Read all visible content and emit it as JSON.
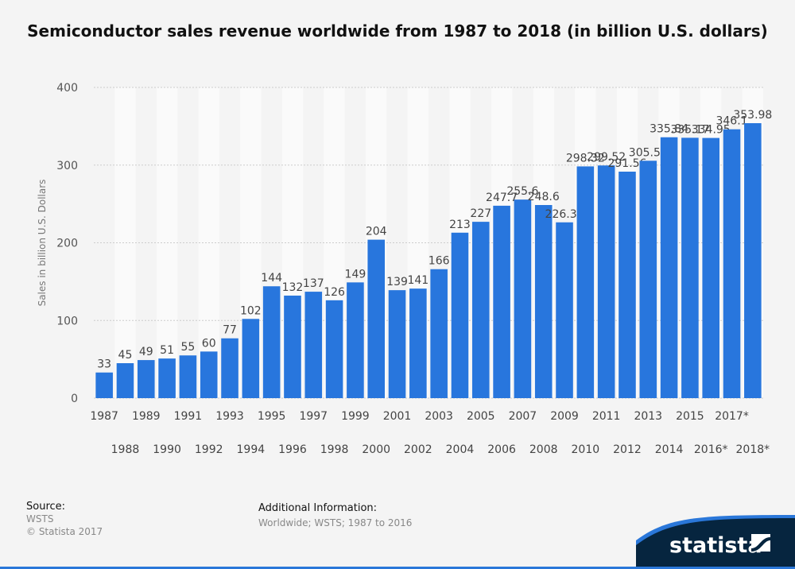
{
  "header": {
    "title": "Semiconductor sales revenue worldwide from 1987 to 2018 (in billion U.S. dollars)"
  },
  "chart_data": {
    "type": "bar",
    "title": "Semiconductor sales revenue worldwide from 1987 to 2018 (in billion U.S. dollars)",
    "xlabel": "",
    "ylabel": "Sales in billion U.S. Dollars",
    "ylim": [
      0,
      400
    ],
    "yticks": [
      0,
      100,
      200,
      300,
      400
    ],
    "grid": true,
    "color": "#2876dd",
    "categories": [
      "1987",
      "1988",
      "1989",
      "1990",
      "1991",
      "1992",
      "1993",
      "1994",
      "1995",
      "1996",
      "1997",
      "1998",
      "1999",
      "2000",
      "2001",
      "2002",
      "2003",
      "2004",
      "2005",
      "2006",
      "2007",
      "2008",
      "2009",
      "2010",
      "2011",
      "2012",
      "2013",
      "2014",
      "2015",
      "2016*",
      "2017*",
      "2018*"
    ],
    "values": [
      33,
      45,
      49,
      51,
      55,
      60,
      77,
      102,
      144,
      132,
      137,
      126,
      149,
      204,
      139,
      141,
      166,
      213,
      227,
      247.7,
      255.6,
      248.6,
      226.31,
      298.32,
      299.52,
      291.56,
      305.58,
      335.84,
      335.17,
      334.95,
      346.1,
      353.98
    ],
    "value_labels": [
      "33",
      "45",
      "49",
      "51",
      "55",
      "60",
      "77",
      "102",
      "144",
      "132",
      "137",
      "126",
      "149",
      "204",
      "139",
      "141",
      "166",
      "213",
      "227",
      "247.7",
      "255.6",
      "248.6",
      "226.31",
      "298.32",
      "299.52",
      "291.56",
      "305.58",
      "335.84",
      "335.17",
      "334.95",
      "346.1",
      "353.98"
    ]
  },
  "footer": {
    "source_label": "Source:",
    "source": "WSTS",
    "copyright": "© Statista 2017",
    "additional_label": "Additional Information:",
    "additional": "Worldwide; WSTS; 1987 to 2016"
  },
  "brand": {
    "name": "statista"
  }
}
